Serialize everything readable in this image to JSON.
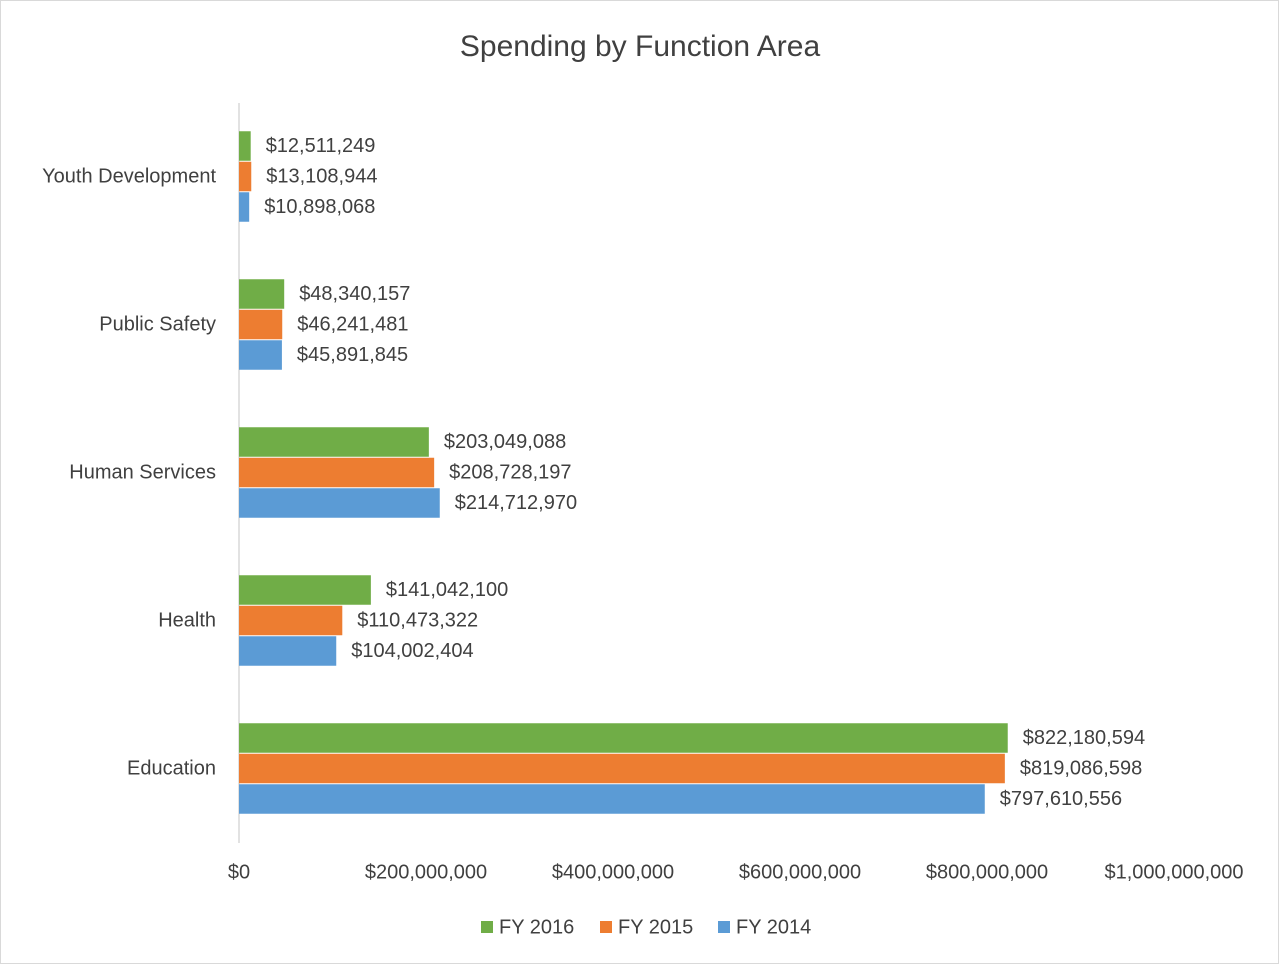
{
  "chart_data": {
    "type": "hbar",
    "title": "Spending by Function Area",
    "categories": [
      "Education",
      "Health",
      "Human Services",
      "Public Safety",
      "Youth Development"
    ],
    "series": [
      {
        "name": "FY 2016",
        "color": "#70ad47",
        "values": [
          822180594,
          141042100,
          203049088,
          48340157,
          12511249
        ],
        "value_labels": [
          "$822,180,594",
          "$141,042,100",
          "$203,049,088",
          "$48,340,157",
          "$12,511,249"
        ]
      },
      {
        "name": "FY 2015",
        "color": "#ed7d31",
        "values": [
          819086598,
          110473322,
          208728197,
          46241481,
          13108944
        ],
        "value_labels": [
          "$819,086,598",
          "$110,473,322",
          "$208,728,197",
          "$46,241,481",
          "$13,108,944"
        ]
      },
      {
        "name": "FY 2014",
        "color": "#5b9bd5",
        "values": [
          797610556,
          104002404,
          214712970,
          45891845,
          10898068
        ],
        "value_labels": [
          "$797,610,556",
          "$104,002,404",
          "$214,712,970",
          "$45,891,845",
          "$10,898,068"
        ]
      }
    ],
    "xlim": [
      0,
      1000000000
    ],
    "xticks": [
      {
        "value": 0,
        "label": "$0"
      },
      {
        "value": 200000000,
        "label": "$200,000,000"
      },
      {
        "value": 400000000,
        "label": "$400,000,000"
      },
      {
        "value": 600000000,
        "label": "$600,000,000"
      },
      {
        "value": 800000000,
        "label": "$800,000,000"
      },
      {
        "value": 1000000000,
        "label": "$1,000,000,000"
      }
    ],
    "grid": false,
    "legend": "bottom"
  }
}
